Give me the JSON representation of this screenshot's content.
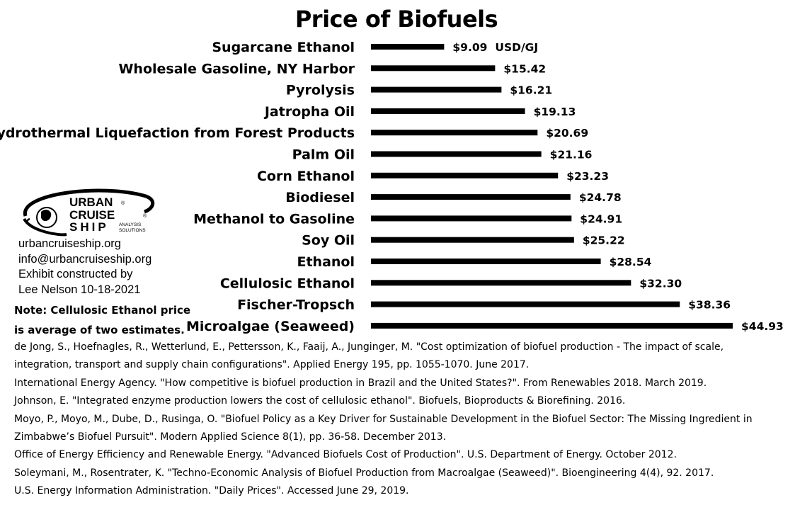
{
  "chart_data": {
    "type": "bar",
    "orientation": "horizontal",
    "title": "Price of Biofuels",
    "unit_label": "USD/GJ",
    "categories": [
      "Sugarcane Ethanol",
      "Wholesale Gasoline, NY Harbor",
      "Pyrolysis",
      "Jatropha Oil",
      "Hydrothermal Liquefaction from Forest Products",
      "Palm Oil",
      "Corn Ethanol",
      "Biodiesel",
      "Methanol to Gasoline",
      "Soy Oil",
      "Ethanol",
      "Cellulosic Ethanol",
      "Fischer-Tropsch",
      "Microalgae (Seaweed)"
    ],
    "values": [
      9.09,
      15.42,
      16.21,
      19.13,
      20.69,
      21.16,
      23.23,
      24.78,
      24.91,
      25.22,
      28.54,
      32.3,
      38.36,
      44.93
    ],
    "value_labels": [
      "$9.09",
      "$15.42",
      "$16.21",
      "$19.13",
      "$20.69",
      "$21.16",
      "$23.23",
      "$24.78",
      "$24.91",
      "$25.22",
      "$28.54",
      "$32.30",
      "$38.36",
      "$44.93"
    ],
    "xlim": [
      0,
      44.93
    ],
    "grid": false,
    "bar_color": "#000000"
  },
  "logo": {
    "line1": "URBAN",
    "line2": "CRUISE",
    "line3": "SHIP",
    "sub1": "ANALYSIS",
    "sub2": "SOLUTIONS",
    "reg": "®"
  },
  "contact": {
    "website": "urbancruiseship.org",
    "email": "info@urbancruiseship.org",
    "credit1": "Exhibit constructed by",
    "credit2": "Lee Nelson 10-18-2021"
  },
  "note": {
    "line1": "Note: Cellulosic Ethanol price",
    "line2": "is average of two estimates."
  },
  "references": [
    "de Jong, S., Hoefnagles, R., Wetterlund, E., Pettersson, K., Faaij, A., Junginger, M. \"Cost optimization of biofuel production - The impact of scale,",
    "integration, transport and supply chain configurations\". Applied Energy 195, pp. 1055-1070. June 2017.",
    "International Energy Agency. \"How competitive is biofuel production in Brazil and the United States?\". From Renewables 2018. March 2019.",
    "Johnson, E. \"Integrated enzyme production lowers the cost of cellulosic ethanol\". Biofuels, Bioproducts & Biorefining. 2016.",
    "Moyo, P., Moyo, M., Dube, D., Rusinga, O. \"Biofuel Policy as a Key Driver for Sustainable Development in the Biofuel Sector: The Missing Ingredient in",
    "Zimbabwe’s Biofuel Pursuit\". Modern Applied Science 8(1), pp. 36-58. December 2013.",
    "Office of Energy Efficiency and Renewable Energy. \"Advanced Biofuels Cost of Production\". U.S. Department of Energy. October 2012.",
    "Soleymani, M., Rosentrater, K. \"Techno-Economic Analysis of Biofuel Production from Macroalgae (Seaweed)\". Bioengineering 4(4), 92. 2017.",
    "U.S. Energy Information Administration. \"Daily Prices\". Accessed June 29, 2019."
  ]
}
